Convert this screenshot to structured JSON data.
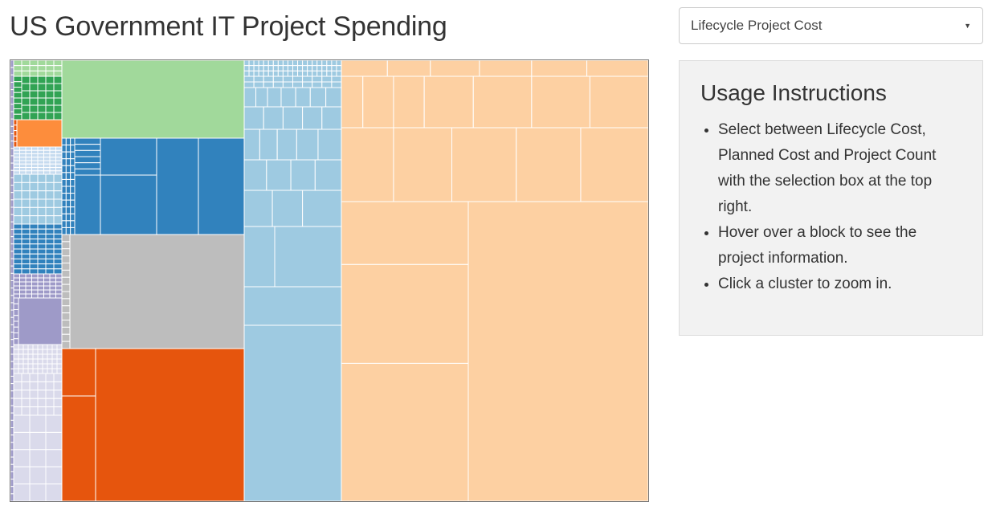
{
  "header": {
    "title": "US Government IT Project Spending"
  },
  "metric_select": {
    "selected": "Lifecycle Project Cost"
  },
  "instructions": {
    "heading": "Usage Instructions",
    "items": [
      "Select between Lifecycle Cost, Planned Cost and Project Count with the selection box at the top right.",
      "Hover over a block to see the project information.",
      "Click a cluster to zoom in."
    ]
  },
  "palette": {
    "orange_light": "#fdd0a2",
    "blue_light": "#9ecae1",
    "blue_dark": "#3182bd",
    "green_light": "#a1d99b",
    "green_dark": "#31a354",
    "gray": "#bdbdbd",
    "orange_dark": "#e6550d",
    "orange_mid": "#fd8d3c",
    "purple": "#9e9ac8",
    "lavender": "#dadaeb",
    "blue_pale": "#c6dbef"
  }
}
